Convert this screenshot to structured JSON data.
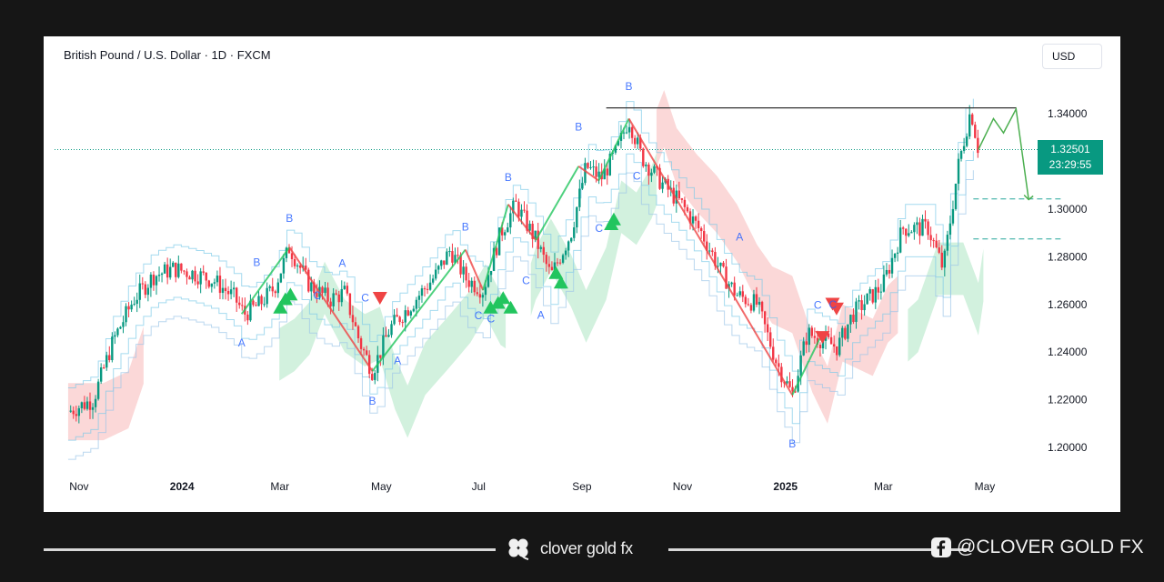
{
  "chart_data": {
    "type": "candlestick",
    "title": "British Pound / U.S. Dollar · 1D · FXCM",
    "currency": "USD",
    "last_price": "1.32501",
    "countdown": "23:29:55",
    "ylim": [
      1.19,
      1.355
    ],
    "y_ticks": [
      "1.34000",
      "1.32000",
      "1.30000",
      "1.28000",
      "1.26000",
      "1.24000",
      "1.22000",
      "1.20000"
    ],
    "y_tick_values": [
      1.34,
      1.32,
      1.3,
      1.28,
      1.26,
      1.24,
      1.22,
      1.2
    ],
    "x_ticks": [
      {
        "label": "Nov",
        "bold": false,
        "t": 0.04
      },
      {
        "label": "2024",
        "bold": true,
        "t": 2.04
      },
      {
        "label": "Mar",
        "bold": false,
        "t": 4.04
      },
      {
        "label": "May",
        "bold": false,
        "t": 6.04
      },
      {
        "label": "Jul",
        "bold": false,
        "t": 8.04
      },
      {
        "label": "Sep",
        "bold": false,
        "t": 10.04
      },
      {
        "label": "Nov",
        "bold": false,
        "t": 12.04
      },
      {
        "label": "2025",
        "bold": true,
        "t": 14.04
      },
      {
        "label": "Mar",
        "bold": false,
        "t": 16.04
      },
      {
        "label": "May",
        "bold": false,
        "t": 18.04
      }
    ],
    "price_path": [
      [
        -0.2,
        1.215
      ],
      [
        0.3,
        1.22
      ],
      [
        0.7,
        1.245
      ],
      [
        1.1,
        1.262
      ],
      [
        1.5,
        1.272
      ],
      [
        1.9,
        1.275
      ],
      [
        2.3,
        1.273
      ],
      [
        2.7,
        1.27
      ],
      [
        3.1,
        1.263
      ],
      [
        3.3,
        1.256
      ],
      [
        3.6,
        1.26
      ],
      [
        3.9,
        1.267
      ],
      [
        4.2,
        1.284
      ],
      [
        4.6,
        1.268
      ],
      [
        5.0,
        1.262
      ],
      [
        5.3,
        1.265
      ],
      [
        5.6,
        1.244
      ],
      [
        5.85,
        1.232
      ],
      [
        6.2,
        1.25
      ],
      [
        6.7,
        1.262
      ],
      [
        7.1,
        1.272
      ],
      [
        7.4,
        1.283
      ],
      [
        7.7,
        1.271
      ],
      [
        8.05,
        1.266
      ],
      [
        8.4,
        1.29
      ],
      [
        8.7,
        1.302
      ],
      [
        9.1,
        1.287
      ],
      [
        9.4,
        1.272
      ],
      [
        9.8,
        1.29
      ],
      [
        10.1,
        1.318
      ],
      [
        10.4,
        1.313
      ],
      [
        10.7,
        1.324
      ],
      [
        10.95,
        1.338
      ],
      [
        11.2,
        1.322
      ],
      [
        11.6,
        1.311
      ],
      [
        12.0,
        1.302
      ],
      [
        12.4,
        1.29
      ],
      [
        12.8,
        1.273
      ],
      [
        13.1,
        1.264
      ],
      [
        13.5,
        1.26
      ],
      [
        13.9,
        1.235
      ],
      [
        14.2,
        1.222
      ],
      [
        14.5,
        1.248
      ],
      [
        14.8,
        1.245
      ],
      [
        15.1,
        1.242
      ],
      [
        15.4,
        1.256
      ],
      [
        15.7,
        1.262
      ],
      [
        16.0,
        1.268
      ],
      [
        16.4,
        1.292
      ],
      [
        16.9,
        1.292
      ],
      [
        17.2,
        1.275
      ],
      [
        17.5,
        1.318
      ],
      [
        17.75,
        1.342
      ],
      [
        17.9,
        1.325
      ]
    ],
    "forecast": [
      [
        17.9,
        1.325
      ],
      [
        18.2,
        1.338
      ],
      [
        18.4,
        1.332
      ],
      [
        18.65,
        1.342
      ],
      [
        18.9,
        1.304
      ]
    ],
    "resistance": {
      "t1": 10.5,
      "t2": 18.65,
      "y": 1.3425
    },
    "last_price_line": 1.32501,
    "support_levels": [
      {
        "t1": 17.8,
        "t2": 19.6,
        "y": 1.3043
      },
      {
        "t1": 17.8,
        "t2": 19.6,
        "y": 1.2875
      }
    ],
    "wave_labels": [
      {
        "text": "A",
        "t": 3.25,
        "y": 1.2438
      },
      {
        "text": "B",
        "t": 3.55,
        "y": 1.2776
      },
      {
        "text": "B",
        "t": 4.2,
        "y": 1.2961
      },
      {
        "text": "C",
        "t": 4.75,
        "y": 1.2637
      },
      {
        "text": "A",
        "t": 5.25,
        "y": 1.2772
      },
      {
        "text": "C",
        "t": 5.7,
        "y": 1.2627
      },
      {
        "text": "B",
        "t": 5.85,
        "y": 1.2195
      },
      {
        "text": "A",
        "t": 6.35,
        "y": 1.2364
      },
      {
        "text": "B",
        "t": 7.7,
        "y": 1.2926
      },
      {
        "text": "C",
        "t": 7.95,
        "y": 1.2554
      },
      {
        "text": "C",
        "t": 8.2,
        "y": 1.2541
      },
      {
        "text": "B",
        "t": 8.55,
        "y": 1.3134
      },
      {
        "text": "C",
        "t": 8.9,
        "y": 1.2701
      },
      {
        "text": "A",
        "t": 9.2,
        "y": 1.2556
      },
      {
        "text": "B",
        "t": 9.95,
        "y": 1.3346
      },
      {
        "text": "C",
        "t": 10.35,
        "y": 1.2919
      },
      {
        "text": "B",
        "t": 10.95,
        "y": 1.3515
      },
      {
        "text": "C",
        "t": 11.1,
        "y": 1.3139
      },
      {
        "text": "A",
        "t": 13.15,
        "y": 1.2883
      },
      {
        "text": "B",
        "t": 14.2,
        "y": 1.2016
      },
      {
        "text": "C",
        "t": 14.7,
        "y": 1.2597
      },
      {
        "text": "C",
        "t": 15.0,
        "y": 1.2599
      }
    ],
    "buy_signals": [
      [
        4.02,
        1.2585
      ],
      [
        4.12,
        1.262
      ],
      [
        4.22,
        1.264
      ],
      [
        8.2,
        1.2585
      ],
      [
        8.35,
        1.2605
      ],
      [
        8.45,
        1.2625
      ],
      [
        8.6,
        1.2585
      ],
      [
        9.5,
        1.273
      ],
      [
        9.6,
        1.269
      ],
      [
        10.6,
        1.2935
      ],
      [
        10.65,
        1.2955
      ]
    ],
    "sell_signals": [
      [
        6.0,
        1.263
      ],
      [
        14.8,
        1.2465
      ],
      [
        15.0,
        1.2605
      ],
      [
        15.08,
        1.2585
      ]
    ],
    "bullish_zones": [
      [
        4.0,
        8.5
      ],
      [
        9.0,
        11.5
      ],
      [
        16.5,
        18.0
      ]
    ],
    "bearish_zones": [
      [
        -0.2,
        1.3
      ],
      [
        11.5,
        16.3
      ]
    ]
  },
  "footer": {
    "brand_name": "clover gold fx",
    "social_handle": "@CLOVER GOLD FX"
  },
  "colors": {
    "up": "#089981",
    "down": "#f23645",
    "wave_label": "#2962ff",
    "forecast": "#4caf50",
    "price_tag": "#089981",
    "page_bg": "#161616"
  }
}
